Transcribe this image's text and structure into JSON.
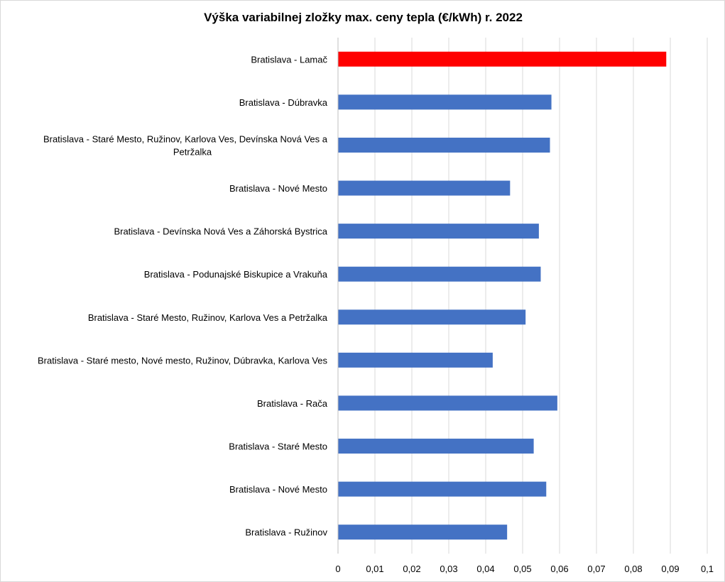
{
  "chart_data": {
    "type": "bar",
    "orientation": "horizontal",
    "title": "Výška variabilnej  zložky max. ceny tepla (€/kWh) r. 2022",
    "xlabel": "",
    "ylabel": "",
    "xlim": [
      0,
      0.1
    ],
    "grid": true,
    "legend": "none",
    "categories": [
      [
        "Bratislava - Lamač"
      ],
      [
        "Bratislava - Dúbravka"
      ],
      [
        "Bratislava - Staré Mesto, Ružinov, Karlova Ves, Devínska Nová Ves a",
        "Petržalka"
      ],
      [
        "Bratislava - Nové Mesto"
      ],
      [
        "Bratislava - Devínska Nová Ves a Záhorská Bystrica"
      ],
      [
        "Bratislava - Podunajské Biskupice a Vrakuňa"
      ],
      [
        "Bratislava - Staré Mesto, Ružinov, Karlova Ves a Petržalka"
      ],
      [
        "Bratislava - Staré mesto, Nové mesto, Ružinov, Dúbravka, Karlova Ves"
      ],
      [
        "Bratislava - Rača"
      ],
      [
        "Bratislava - Staré Mesto"
      ],
      [
        "Bratislava - Nové Mesto"
      ],
      [
        "Bratislava - Ružinov"
      ]
    ],
    "values": [
      0.0889,
      0.0578,
      0.0574,
      0.0466,
      0.0544,
      0.0549,
      0.0508,
      0.0419,
      0.0594,
      0.053,
      0.0564,
      0.0458
    ],
    "bar_colors": [
      "#ff0000",
      "#4472c4",
      "#4472c4",
      "#4472c4",
      "#4472c4",
      "#4472c4",
      "#4472c4",
      "#4472c4",
      "#4472c4",
      "#4472c4",
      "#4472c4",
      "#4472c4"
    ],
    "ticks": [
      {
        "value": 0,
        "label": "0"
      },
      {
        "value": 0.01,
        "label": "0,01"
      },
      {
        "value": 0.02,
        "label": "0,02"
      },
      {
        "value": 0.03,
        "label": "0,03"
      },
      {
        "value": 0.04,
        "label": "0,04"
      },
      {
        "value": 0.05,
        "label": "0,05"
      },
      {
        "value": 0.06,
        "label": "0,06"
      },
      {
        "value": 0.07,
        "label": "0,07"
      },
      {
        "value": 0.08,
        "label": "0,08"
      },
      {
        "value": 0.09,
        "label": "0,09"
      },
      {
        "value": 0.1,
        "label": "0,1"
      }
    ],
    "gridline_color": "#d9d9d9",
    "axis_color": "#bfbfbf"
  }
}
